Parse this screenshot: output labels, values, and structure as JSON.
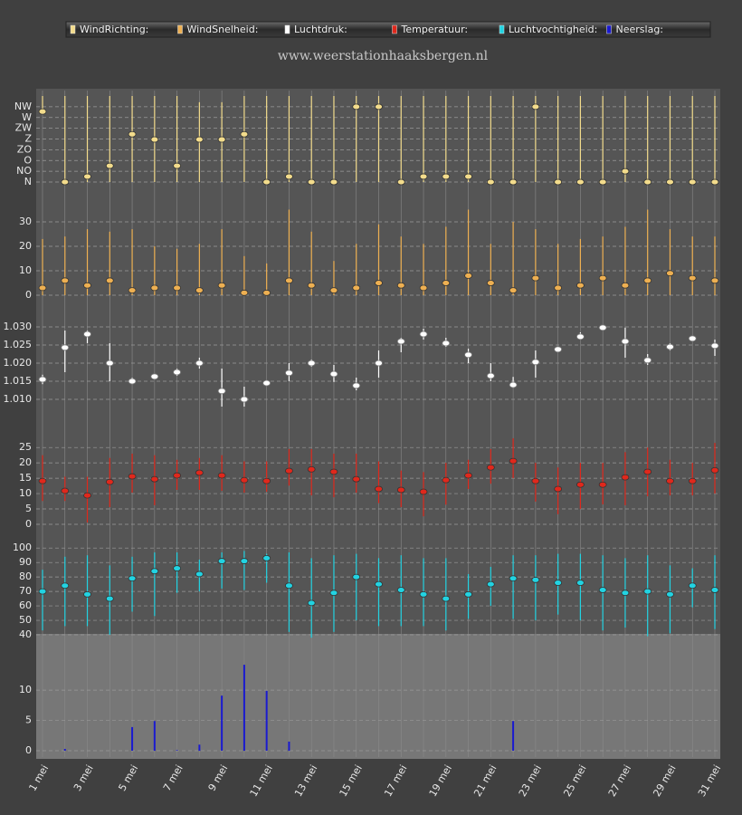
{
  "chart_data": {
    "type": "panel",
    "subtitle": "www.weerstationhaaksbergen.nl",
    "categories": [
      "1 mei",
      null,
      "3 mei",
      null,
      "5 mei",
      null,
      "7 mei",
      null,
      "9 mei",
      null,
      "11 mei",
      null,
      "13 mei",
      null,
      "15 mei",
      null,
      "17 mei",
      null,
      "19 mei",
      null,
      "21 mei",
      null,
      "23 mei",
      null,
      "25 mei",
      null,
      "27 mei",
      null,
      "29 mei",
      null,
      "31 mei"
    ],
    "grid": true,
    "series": [
      {
        "name": "WindRichting:",
        "type": "range",
        "color": "#f3dc8c",
        "values": [
          295,
          0,
          23,
          68,
          200,
          178,
          68,
          178,
          178,
          200,
          0,
          23,
          0,
          0,
          315,
          315,
          0,
          23,
          23,
          23,
          0,
          0,
          315,
          0,
          0,
          0,
          45,
          0,
          0,
          0,
          0
        ],
        "min": [
          284,
          0,
          0,
          0,
          0,
          0,
          0,
          0,
          0,
          0,
          0,
          0,
          0,
          0,
          0,
          0,
          0,
          0,
          0,
          0,
          0,
          0,
          0,
          0,
          0,
          0,
          0,
          0,
          0,
          0,
          0
        ],
        "max": [
          360,
          360,
          360,
          360,
          360,
          360,
          360,
          334,
          334,
          360,
          360,
          360,
          360,
          360,
          360,
          360,
          360,
          360,
          360,
          360,
          360,
          360,
          360,
          360,
          360,
          360,
          360,
          360,
          360,
          360,
          360
        ],
        "ylim": [
          0,
          360
        ],
        "yticks": [
          {
            "value": 0,
            "label": "N"
          },
          {
            "value": 45,
            "label": "NO"
          },
          {
            "value": 90,
            "label": "O"
          },
          {
            "value": 135,
            "label": "ZO"
          },
          {
            "value": 180,
            "label": "Z"
          },
          {
            "value": 225,
            "label": "ZW"
          },
          {
            "value": 270,
            "label": "W"
          },
          {
            "value": 315,
            "label": "NW"
          }
        ]
      },
      {
        "name": "WindSnelheid:",
        "type": "range",
        "color": "#eeb052",
        "values": [
          3,
          6,
          4,
          6,
          2,
          3,
          3,
          2,
          4,
          1,
          1,
          6,
          4,
          2,
          3,
          5,
          4,
          3,
          5,
          8,
          5,
          2,
          7,
          3,
          4,
          7,
          4,
          6,
          9,
          7,
          6
        ],
        "min": [
          0,
          0,
          0,
          0,
          0,
          0,
          0,
          0,
          0,
          0,
          0,
          0,
          0,
          0,
          0,
          0,
          0,
          0,
          0,
          0,
          0,
          0,
          0,
          0,
          0,
          0,
          0,
          0,
          0,
          0,
          0
        ],
        "max": [
          23,
          24,
          27,
          26,
          27,
          20,
          19,
          21,
          27,
          16,
          13,
          35,
          26,
          14,
          21,
          29,
          24,
          21,
          28,
          35,
          21,
          30,
          27,
          21,
          23,
          24,
          28,
          35,
          27,
          24,
          24
        ],
        "ylim": [
          0,
          35
        ],
        "yticks": [
          0,
          10,
          20,
          30
        ]
      },
      {
        "name": "Luchtdruk:",
        "type": "range",
        "color": "#ffffff",
        "values": [
          1.0155,
          1.0243,
          1.028,
          1.02,
          1.015,
          1.0163,
          1.0175,
          1.02,
          1.0123,
          1.01,
          1.0145,
          1.0173,
          1.02,
          1.017,
          1.0138,
          1.02,
          1.026,
          1.028,
          1.0255,
          1.0223,
          1.0165,
          1.014,
          1.0203,
          1.0238,
          1.0273,
          1.0298,
          1.026,
          1.0208,
          1.0245,
          1.0268,
          1.0248
        ],
        "min": [
          1.0142,
          1.0175,
          1.0255,
          1.015,
          1.0142,
          1.0158,
          1.0165,
          1.0185,
          1.008,
          1.008,
          1.014,
          1.015,
          1.019,
          1.0148,
          1.0125,
          1.016,
          1.023,
          1.0265,
          1.0245,
          1.02,
          1.015,
          1.0132,
          1.016,
          1.023,
          1.0265,
          1.029,
          1.0215,
          1.0195,
          1.0235,
          1.026,
          1.022
        ],
        "max": [
          1.0168,
          1.029,
          1.029,
          1.0255,
          1.016,
          1.017,
          1.0185,
          1.0215,
          1.0185,
          1.0135,
          1.015,
          1.02,
          1.021,
          1.0195,
          1.016,
          1.0235,
          1.027,
          1.0295,
          1.027,
          1.024,
          1.02,
          1.0162,
          1.0235,
          1.0245,
          1.0285,
          1.0305,
          1.0298,
          1.0225,
          1.0255,
          1.0275,
          1.0265
        ],
        "ylim": [
          1.006,
          1.033
        ],
        "yticks": [
          {
            "value": 1.01,
            "label": "1.010"
          },
          {
            "value": 1.015,
            "label": "1.015"
          },
          {
            "value": 1.02,
            "label": "1.020"
          },
          {
            "value": 1.025,
            "label": "1.025"
          },
          {
            "value": 1.03,
            "label": "1.030"
          }
        ]
      },
      {
        "name": "Temperatuur:",
        "type": "range",
        "color": "#e0281c",
        "values": [
          14.1,
          10.9,
          9.4,
          13.8,
          15.6,
          14.7,
          15.9,
          16.8,
          15.9,
          14.4,
          14.1,
          17.4,
          17.9,
          17.1,
          14.7,
          11.5,
          11.2,
          10.6,
          14.4,
          15.9,
          18.5,
          20.6,
          14.1,
          11.5,
          12.9,
          12.9,
          15.3,
          17.1,
          14.1,
          14.1,
          17.6
        ],
        "min": [
          7.6,
          7.6,
          0.6,
          5.6,
          10.3,
          6.2,
          11.2,
          11.2,
          10.9,
          10.3,
          10.6,
          12.6,
          9.4,
          8.8,
          10.3,
          6.9,
          5.6,
          2.6,
          6.4,
          11.5,
          13.2,
          15,
          7.4,
          3.3,
          5,
          6.5,
          6.2,
          9.1,
          9.4,
          9.4,
          10
        ],
        "max": [
          22.5,
          15.5,
          15.5,
          21.6,
          23,
          22.5,
          21,
          21.6,
          22.5,
          20.5,
          20.5,
          24.5,
          24.5,
          23,
          23,
          20.5,
          17.5,
          17,
          20,
          21,
          24.5,
          28,
          20,
          18.5,
          20,
          20,
          23.5,
          25,
          21,
          20,
          26.5
        ],
        "ylim": [
          0,
          28
        ],
        "yticks": [
          0,
          5,
          10,
          15,
          20,
          25
        ]
      },
      {
        "name": "Luchtvochtigheid:",
        "type": "range",
        "color": "#22d3e2",
        "values": [
          70,
          74,
          68,
          65,
          79,
          84,
          86,
          82,
          91,
          91,
          93,
          74,
          62,
          69,
          80,
          75,
          71,
          68,
          65,
          68,
          75,
          79,
          78,
          76,
          76,
          71,
          69,
          70,
          68,
          74,
          71
        ],
        "min": [
          43,
          46,
          46,
          40,
          56,
          53,
          69,
          70,
          72,
          71,
          76,
          42,
          38,
          42,
          50,
          46,
          46,
          46,
          43,
          51,
          60,
          51,
          50,
          54,
          50,
          43,
          45,
          39,
          41,
          59,
          44
        ],
        "max": [
          85,
          94,
          95,
          88,
          94,
          97,
          97,
          92,
          97,
          98,
          96,
          97,
          93,
          95,
          96,
          93,
          95,
          93,
          93,
          82,
          87,
          95,
          95,
          96,
          96,
          95,
          93,
          95,
          88,
          86,
          95
        ],
        "ylim": [
          35,
          102
        ],
        "yticks": [
          40,
          50,
          60,
          70,
          80,
          90,
          100
        ]
      },
      {
        "name": "Neerslag:",
        "type": "bar",
        "color": "#1a1ad0",
        "values": [
          0,
          0.3,
          0,
          0,
          3.9,
          4.9,
          0.1,
          1,
          9.1,
          14.2,
          9.9,
          1.5,
          0,
          0,
          0,
          0,
          0,
          0,
          0,
          0,
          0,
          4.9,
          0,
          0,
          0,
          0,
          0,
          0,
          0,
          0,
          0
        ],
        "ylim": [
          0,
          19
        ],
        "yticks": [
          0,
          5,
          10
        ]
      }
    ]
  }
}
